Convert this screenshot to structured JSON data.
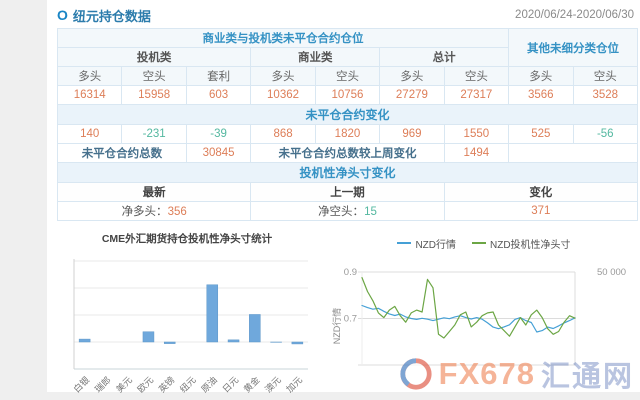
{
  "header": {
    "bullet": "O",
    "title": "纽元持仓数据",
    "date_range": "2020/06/24-2020/06/30"
  },
  "table": {
    "group_left": "商业类与投机类未平仓合约仓位",
    "group_right": "其他未细分类仓位",
    "subgroups": [
      "投机类",
      "商业类",
      "总计"
    ],
    "col_headers": [
      "多头",
      "空头",
      "套利",
      "多头",
      "空头",
      "多头",
      "空头",
      "多头",
      "空头"
    ],
    "open_interest": [
      "16314",
      "15958",
      "603",
      "10362",
      "10756",
      "27279",
      "27317",
      "3566",
      "3528"
    ],
    "change_section_title": "未平仓合约变化",
    "changes": [
      "140",
      "-231",
      "-39",
      "868",
      "1820",
      "969",
      "1550",
      "525",
      "-56"
    ],
    "totals": {
      "label_total": "未平仓合约总数",
      "total_value": "30845",
      "label_change": "未平仓合约总数较上周变化",
      "change_value": "1494"
    },
    "net_section_title": "投机性净头寸变化",
    "net_headers": [
      "最新",
      "上一期",
      "变化"
    ],
    "net_latest_label": "净多头：",
    "net_latest_value": "356",
    "net_prev_label": "净空头：",
    "net_prev_value": "15",
    "net_change_value": "371"
  },
  "chart_data": [
    {
      "type": "bar",
      "title": "CME外汇期货持仓投机性净头寸统计",
      "categories": [
        "白银",
        "瑞郎",
        "美元",
        "欧元",
        "英镑",
        "纽元",
        "原油",
        "日元",
        "黄金",
        "澳元",
        "加元"
      ],
      "values": [
        27000,
        2000,
        2000,
        95000,
        -15000,
        400,
        530000,
        20000,
        255000,
        -3000,
        -18000
      ],
      "ylim": [
        -250000,
        750000
      ],
      "grid_step": 250000,
      "bar_color": "#6fa8dc",
      "xlabel": "",
      "ylabel": ""
    },
    {
      "type": "line",
      "left_axis": {
        "label": "NZD行情",
        "ticks": [
          "0.9",
          "0.7"
        ],
        "tick_values": [
          0.9,
          0.7
        ]
      },
      "right_axis": {
        "top_tick": "50 000",
        "top_value": 50000,
        "zero_at_left_value": 0.7
      },
      "legend_position": "top",
      "series": [
        {
          "name": "NZD行情",
          "axis": "left",
          "color": "#45a0d6",
          "values": [
            0.756,
            0.747,
            0.74,
            0.744,
            0.731,
            0.72,
            0.713,
            0.719,
            0.707,
            0.7,
            0.696,
            0.701,
            0.697,
            0.691,
            0.697,
            0.703,
            0.699,
            0.707,
            0.712,
            0.704,
            0.698,
            0.704,
            0.697,
            0.681,
            0.663,
            0.656,
            0.664,
            0.673,
            0.696,
            0.704,
            0.691,
            0.683,
            0.642,
            0.648,
            0.663,
            0.657,
            0.668,
            0.681,
            0.691,
            0.703
          ]
        },
        {
          "name": "NZD投机性净头寸",
          "axis": "right",
          "color": "#6ca645",
          "values": [
            44000,
            29000,
            19000,
            6000,
            1000,
            9000,
            13000,
            3000,
            -4000,
            6000,
            9000,
            7000,
            42000,
            33000,
            -17000,
            -21000,
            -14000,
            -7000,
            4000,
            7000,
            -9000,
            -4000,
            3000,
            6000,
            7000,
            -7000,
            -13000,
            -19000,
            -9000,
            1000,
            -7000,
            4000,
            9000,
            1000,
            -11000,
            -17000,
            -14000,
            -4000,
            3000,
            356
          ]
        }
      ]
    }
  ],
  "watermark": {
    "brand": "FX678",
    "brand_cn": "汇通网"
  }
}
